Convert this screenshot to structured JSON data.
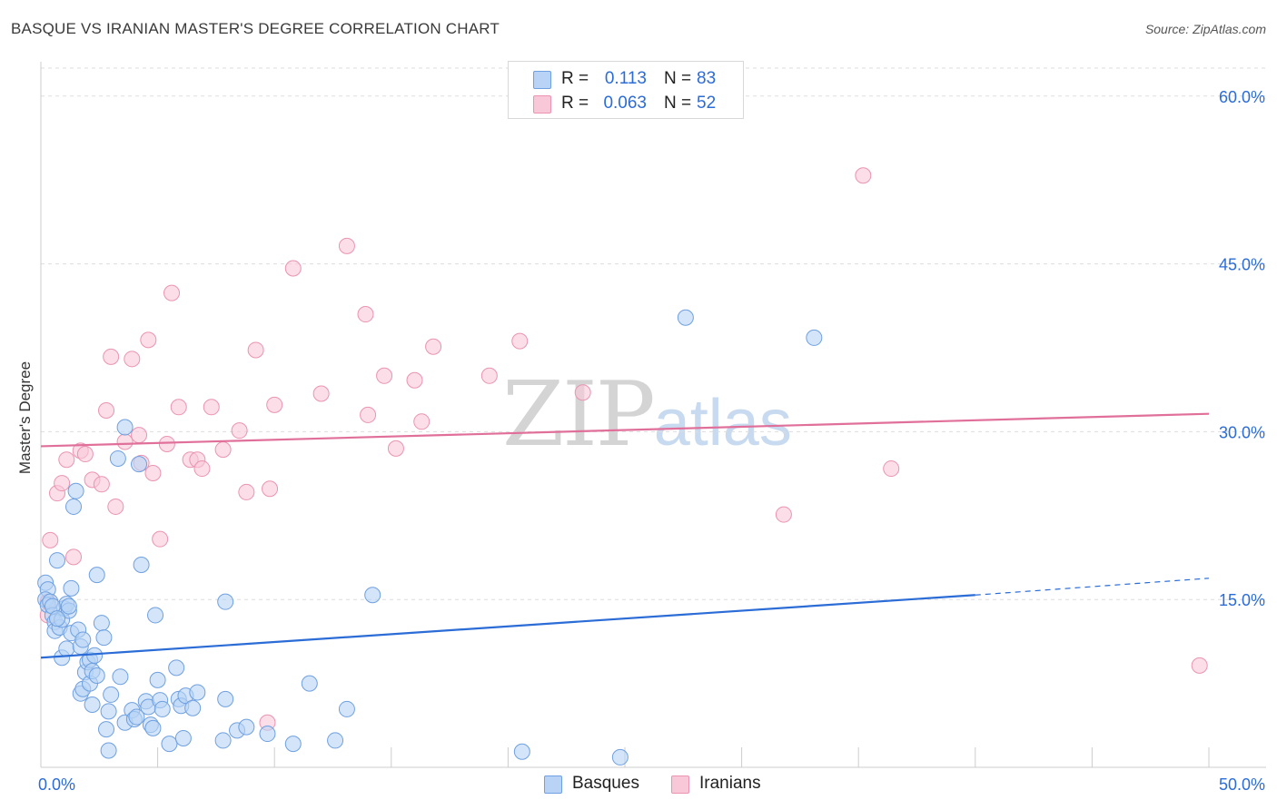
{
  "title": "BASQUE VS IRANIAN MASTER'S DEGREE CORRELATION CHART",
  "source": "Source: ZipAtlas.com",
  "watermark": {
    "zip": "ZIP",
    "atlas": "atlas"
  },
  "colors": {
    "basques_fill": "#b8d3f5",
    "basques_stroke": "#6fa0e0",
    "basques_line": "#2b6cd6",
    "iranians_fill": "#f8c8d8",
    "iranians_stroke": "#ea94b2",
    "iranians_line": "#e0709a",
    "grid": "#dddddd",
    "axis_label": "#2b6cd6"
  },
  "legend": {
    "rows": [
      {
        "r_label": "R =",
        "r_value": "0.113",
        "n_label": "N =",
        "n_value": "83"
      },
      {
        "r_label": "R =",
        "r_value": "0.063",
        "n_label": "N =",
        "n_value": "52"
      }
    ]
  },
  "bottom_legend": [
    {
      "label": "Basques"
    },
    {
      "label": "Iranians"
    }
  ],
  "chart_data": {
    "type": "scatter",
    "title": "BASQUE VS IRANIAN MASTER'S DEGREE CORRELATION CHART",
    "xlabel": "",
    "ylabel": "Master's Degree",
    "xlim": [
      0,
      50
    ],
    "ylim": [
      0,
      62.5
    ],
    "x_tick_labels": [
      {
        "value": 0,
        "label": "0.0%"
      },
      {
        "value": 50,
        "label": "50.0%"
      }
    ],
    "y_tick_labels": [
      {
        "value": 15,
        "label": "15.0%"
      },
      {
        "value": 30,
        "label": "30.0%"
      },
      {
        "value": 45,
        "label": "45.0%"
      },
      {
        "value": 60,
        "label": "60.0%"
      }
    ],
    "x_minor_ticks": [
      5,
      10,
      15,
      20,
      25,
      30,
      35,
      40,
      45,
      50
    ],
    "series": [
      {
        "name": "Basques",
        "trend": {
          "x0": 0,
          "y0": 9.8,
          "x1": 40,
          "y1": 15.4,
          "dashed_to_x": 50,
          "dashed_to_y": 16.9
        },
        "points": [
          [
            0.2,
            16.5
          ],
          [
            0.3,
            15.9
          ],
          [
            0.2,
            15.0
          ],
          [
            0.3,
            14.5
          ],
          [
            0.4,
            14.8
          ],
          [
            0.5,
            13.6
          ],
          [
            0.6,
            13.0
          ],
          [
            0.6,
            12.2
          ],
          [
            0.7,
            18.5
          ],
          [
            0.8,
            12.5
          ],
          [
            0.9,
            13.2
          ],
          [
            1.0,
            14.2
          ],
          [
            1.1,
            14.6
          ],
          [
            1.2,
            14.0
          ],
          [
            1.3,
            16.0
          ],
          [
            1.4,
            23.3
          ],
          [
            1.5,
            24.7
          ],
          [
            0.9,
            9.8
          ],
          [
            1.1,
            10.6
          ],
          [
            1.3,
            12.0
          ],
          [
            1.6,
            12.3
          ],
          [
            1.7,
            10.8
          ],
          [
            1.8,
            11.4
          ],
          [
            1.7,
            6.6
          ],
          [
            1.8,
            7.0
          ],
          [
            1.9,
            8.5
          ],
          [
            2.0,
            9.4
          ],
          [
            2.1,
            9.6
          ],
          [
            2.1,
            7.5
          ],
          [
            2.2,
            8.6
          ],
          [
            2.3,
            10.0
          ],
          [
            2.4,
            8.2
          ],
          [
            2.2,
            5.6
          ],
          [
            2.4,
            17.2
          ],
          [
            2.6,
            12.9
          ],
          [
            2.7,
            11.6
          ],
          [
            2.8,
            3.4
          ],
          [
            2.9,
            5.0
          ],
          [
            3.0,
            6.5
          ],
          [
            2.9,
            1.5
          ],
          [
            3.3,
            27.6
          ],
          [
            3.4,
            8.1
          ],
          [
            3.6,
            30.4
          ],
          [
            3.6,
            4.0
          ],
          [
            3.9,
            5.1
          ],
          [
            4.0,
            4.3
          ],
          [
            4.1,
            4.5
          ],
          [
            4.2,
            27.1
          ],
          [
            4.3,
            18.1
          ],
          [
            4.5,
            5.9
          ],
          [
            4.6,
            5.4
          ],
          [
            4.7,
            3.8
          ],
          [
            4.8,
            3.5
          ],
          [
            4.9,
            13.6
          ],
          [
            5.0,
            7.8
          ],
          [
            5.1,
            6.0
          ],
          [
            5.2,
            5.2
          ],
          [
            5.5,
            2.1
          ],
          [
            5.8,
            8.9
          ],
          [
            5.9,
            6.1
          ],
          [
            6.0,
            5.5
          ],
          [
            6.1,
            2.6
          ],
          [
            6.2,
            6.4
          ],
          [
            6.5,
            5.3
          ],
          [
            6.7,
            6.7
          ],
          [
            7.8,
            2.4
          ],
          [
            7.9,
            6.1
          ],
          [
            7.9,
            14.8
          ],
          [
            8.4,
            3.3
          ],
          [
            8.8,
            3.6
          ],
          [
            9.7,
            3.0
          ],
          [
            10.8,
            2.1
          ],
          [
            11.5,
            7.5
          ],
          [
            12.6,
            2.4
          ],
          [
            13.1,
            5.2
          ],
          [
            14.2,
            15.4
          ],
          [
            20.6,
            1.4
          ],
          [
            24.8,
            0.9
          ],
          [
            27.6,
            40.2
          ],
          [
            33.1,
            38.4
          ],
          [
            0.5,
            14.4
          ],
          [
            0.7,
            13.3
          ],
          [
            1.2,
            14.4
          ]
        ]
      },
      {
        "name": "Iranians",
        "trend": {
          "x0": 0,
          "y0": 28.7,
          "x1": 50,
          "y1": 31.6
        },
        "points": [
          [
            0.4,
            20.3
          ],
          [
            0.3,
            14.8
          ],
          [
            0.3,
            13.6
          ],
          [
            0.7,
            24.5
          ],
          [
            0.9,
            25.4
          ],
          [
            1.1,
            27.5
          ],
          [
            1.4,
            18.8
          ],
          [
            1.7,
            28.3
          ],
          [
            1.9,
            28.0
          ],
          [
            2.2,
            25.7
          ],
          [
            2.6,
            25.3
          ],
          [
            2.8,
            31.9
          ],
          [
            3.0,
            36.7
          ],
          [
            3.2,
            23.3
          ],
          [
            3.6,
            29.1
          ],
          [
            3.9,
            36.5
          ],
          [
            4.2,
            29.7
          ],
          [
            4.3,
            27.2
          ],
          [
            4.6,
            38.2
          ],
          [
            4.8,
            26.3
          ],
          [
            5.1,
            20.4
          ],
          [
            5.4,
            28.9
          ],
          [
            5.6,
            42.4
          ],
          [
            5.9,
            32.2
          ],
          [
            6.4,
            27.5
          ],
          [
            6.7,
            27.5
          ],
          [
            6.9,
            26.7
          ],
          [
            7.3,
            32.2
          ],
          [
            7.8,
            28.4
          ],
          [
            8.5,
            30.1
          ],
          [
            8.8,
            24.6
          ],
          [
            9.2,
            37.3
          ],
          [
            9.7,
            4.0
          ],
          [
            9.8,
            24.9
          ],
          [
            10.0,
            32.4
          ],
          [
            10.8,
            44.6
          ],
          [
            12.0,
            33.4
          ],
          [
            13.1,
            46.6
          ],
          [
            13.9,
            40.5
          ],
          [
            14.0,
            31.5
          ],
          [
            14.7,
            35.0
          ],
          [
            15.2,
            28.5
          ],
          [
            16.0,
            34.6
          ],
          [
            16.3,
            30.9
          ],
          [
            16.8,
            37.6
          ],
          [
            19.2,
            35.0
          ],
          [
            20.5,
            38.1
          ],
          [
            23.2,
            33.5
          ],
          [
            31.8,
            22.6
          ],
          [
            35.2,
            52.9
          ],
          [
            36.4,
            26.7
          ],
          [
            49.6,
            9.1
          ]
        ]
      }
    ]
  }
}
